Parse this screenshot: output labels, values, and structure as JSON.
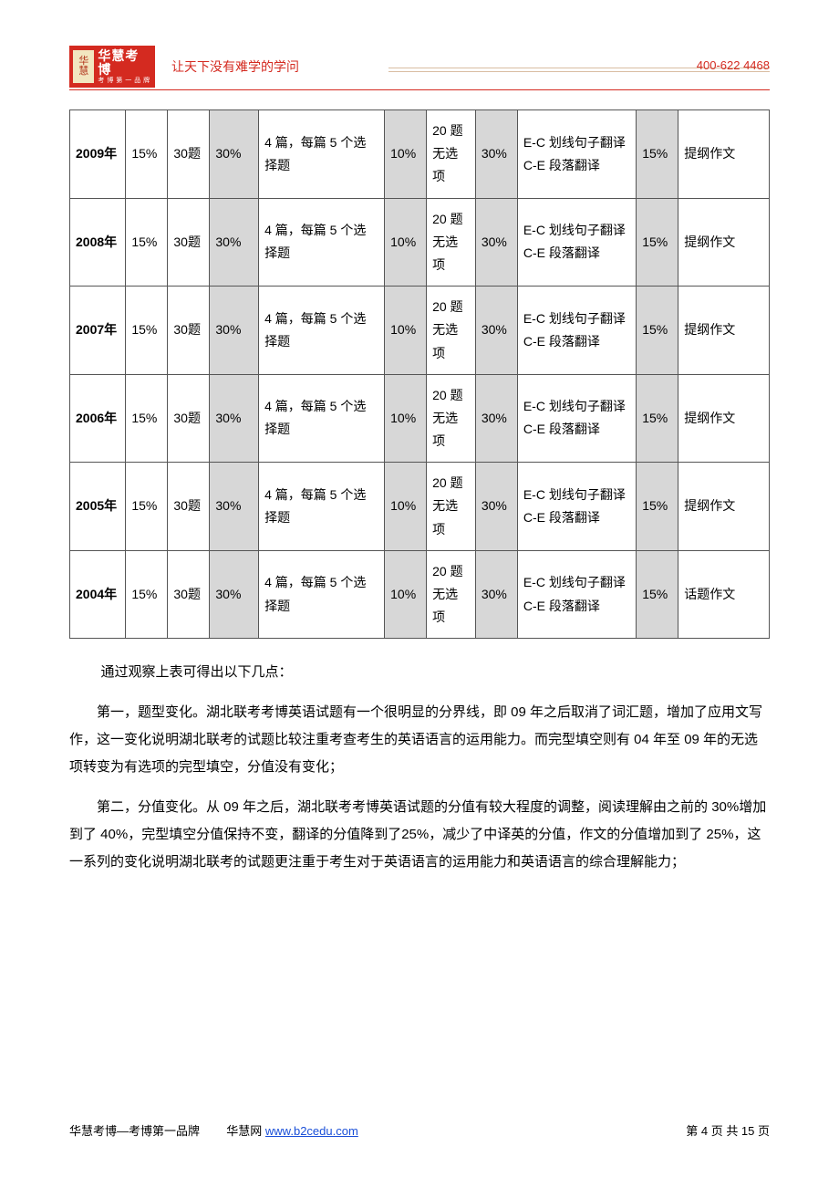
{
  "colors": {
    "brand_red": "#d42a20",
    "table_border": "#555555",
    "shade_bg": "#d7d7d7",
    "link_blue": "#1a4fd8",
    "header_line": "#d9bda2",
    "page_bg": "#ffffff"
  },
  "header": {
    "logo_badge_top": "华",
    "logo_badge_bottom": "慧",
    "logo_main": "华慧考博",
    "logo_sub": "考 博 第 一 品 牌",
    "slogan": "让天下没有难学的学问",
    "phone": "400-622 4468"
  },
  "table": {
    "column_widths_pct": [
      8,
      6,
      6,
      7,
      18,
      6,
      7,
      6,
      17,
      6,
      13
    ],
    "shaded_columns": [
      3,
      5,
      7,
      9
    ],
    "rows": [
      {
        "year": "2009年",
        "vocab_pct": "15%",
        "vocab_q": "30题",
        "reading_pct": "30%",
        "reading_desc": "4 篇，每篇 5 个选择题",
        "cloze_pct": "10%",
        "cloze_desc": "20 题\n无选项",
        "trans_pct": "30%",
        "trans_desc": "E-C 划线句子翻译\nC-E 段落翻译",
        "writing_pct": "15%",
        "writing_desc": "提纲作文"
      },
      {
        "year": "2008年",
        "vocab_pct": "15%",
        "vocab_q": "30题",
        "reading_pct": "30%",
        "reading_desc": "4 篇，每篇 5 个选择题",
        "cloze_pct": "10%",
        "cloze_desc": "20 题\n无选项",
        "trans_pct": "30%",
        "trans_desc": "E-C 划线句子翻译\nC-E 段落翻译",
        "writing_pct": "15%",
        "writing_desc": "提纲作文"
      },
      {
        "year": "2007年",
        "vocab_pct": "15%",
        "vocab_q": "30题",
        "reading_pct": "30%",
        "reading_desc": "4 篇，每篇 5 个选择题",
        "cloze_pct": "10%",
        "cloze_desc": "20 题\n无选项",
        "trans_pct": "30%",
        "trans_desc": "E-C 划线句子翻译\nC-E 段落翻译",
        "writing_pct": "15%",
        "writing_desc": "提纲作文"
      },
      {
        "year": "2006年",
        "vocab_pct": "15%",
        "vocab_q": "30题",
        "reading_pct": "30%",
        "reading_desc": "4 篇，每篇 5 个选择题",
        "cloze_pct": "10%",
        "cloze_desc": "20 题\n无选项",
        "trans_pct": "30%",
        "trans_desc": "E-C 划线句子翻译\nC-E 段落翻译",
        "writing_pct": "15%",
        "writing_desc": "提纲作文"
      },
      {
        "year": "2005年",
        "vocab_pct": "15%",
        "vocab_q": "30题",
        "reading_pct": "30%",
        "reading_desc": "4 篇，每篇 5 个选择题",
        "cloze_pct": "10%",
        "cloze_desc": "20 题\n无选项",
        "trans_pct": "30%",
        "trans_desc": "E-C 划线句子翻译\nC-E 段落翻译",
        "writing_pct": "15%",
        "writing_desc": "提纲作文"
      },
      {
        "year": "2004年",
        "vocab_pct": "15%",
        "vocab_q": "30题",
        "reading_pct": "30%",
        "reading_desc": "4 篇，每篇 5 个选择题",
        "cloze_pct": "10%",
        "cloze_desc": "20 题\n无选项",
        "trans_pct": "30%",
        "trans_desc": "E-C 划线句子翻译\nC-E 段落翻译",
        "writing_pct": "15%",
        "writing_desc": "话题作文"
      }
    ]
  },
  "paragraphs": {
    "intro": "通过观察上表可得出以下几点：",
    "p1": "第一，题型变化。湖北联考考博英语试题有一个很明显的分界线，即 09 年之后取消了词汇题，增加了应用文写作，这一变化说明湖北联考的试题比较注重考查考生的英语语言的运用能力。而完型填空则有 04 年至 09 年的无选项转变为有选项的完型填空，分值没有变化；",
    "p2": "第二，分值变化。从 09 年之后，湖北联考考博英语试题的分值有较大程度的调整，阅读理解由之前的 30%增加到了 40%，完型填空分值保持不变，翻译的分值降到了25%，减少了中译英的分值，作文的分值增加到了 25%，这一系列的变化说明湖北联考的试题更注重于考生对于英语语言的运用能力和英语语言的综合理解能力；"
  },
  "footer": {
    "brand_text": "华慧考博—考博第一品牌",
    "site_label": "华慧网",
    "site_url_text": "www.b2cedu.com",
    "page_label": "第 4 页 共 15 页"
  }
}
